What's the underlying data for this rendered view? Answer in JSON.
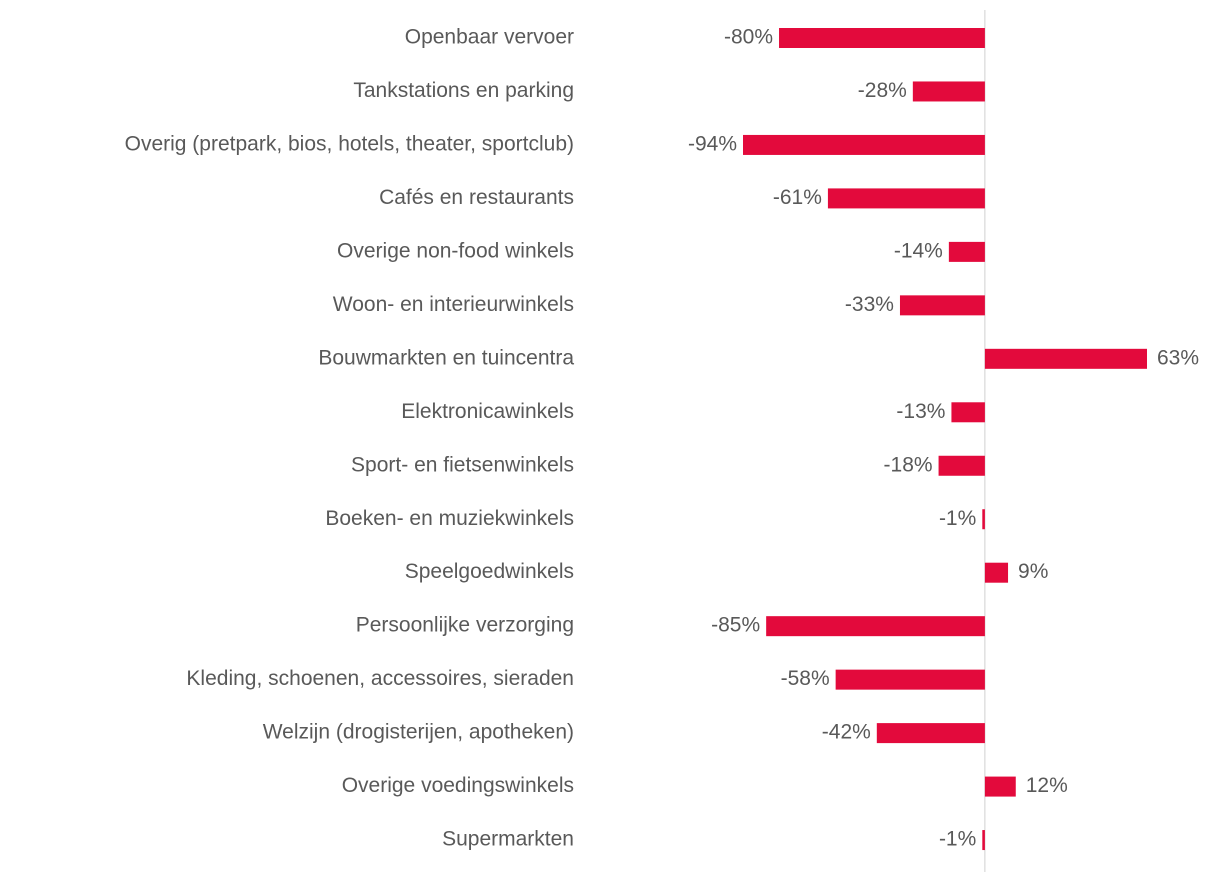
{
  "chart_data": {
    "type": "bar",
    "orientation": "horizontal",
    "categories": [
      "Openbaar vervoer",
      "Tankstations en parking",
      "Overig (pretpark, bios, hotels, theater, sportclub)",
      "Cafés en restaurants",
      "Overige non-food winkels",
      "Woon- en interieurwinkels",
      "Bouwmarkten en tuincentra",
      "Elektronicawinkels",
      "Sport- en fietsenwinkels",
      "Boeken- en muziekwinkels",
      "Speelgoedwinkels",
      "Persoonlijke verzorging",
      "Kleding, schoenen, accessoires, sieraden",
      "Welzijn (drogisterijen, apotheken)",
      "Overige voedingswinkels",
      "Supermarkten"
    ],
    "values": [
      -80,
      -28,
      -94,
      -61,
      -14,
      -33,
      63,
      -13,
      -18,
      -1,
      9,
      -85,
      -58,
      -42,
      12,
      -1
    ],
    "value_labels": [
      "-80%",
      "-28%",
      "-94%",
      "-61%",
      "-14%",
      "-33%",
      "63%",
      "-13%",
      "-18%",
      "-1%",
      "9%",
      "-85%",
      "-58%",
      "-42%",
      "12%",
      "-1%"
    ],
    "color": "#e30a3c"
  }
}
